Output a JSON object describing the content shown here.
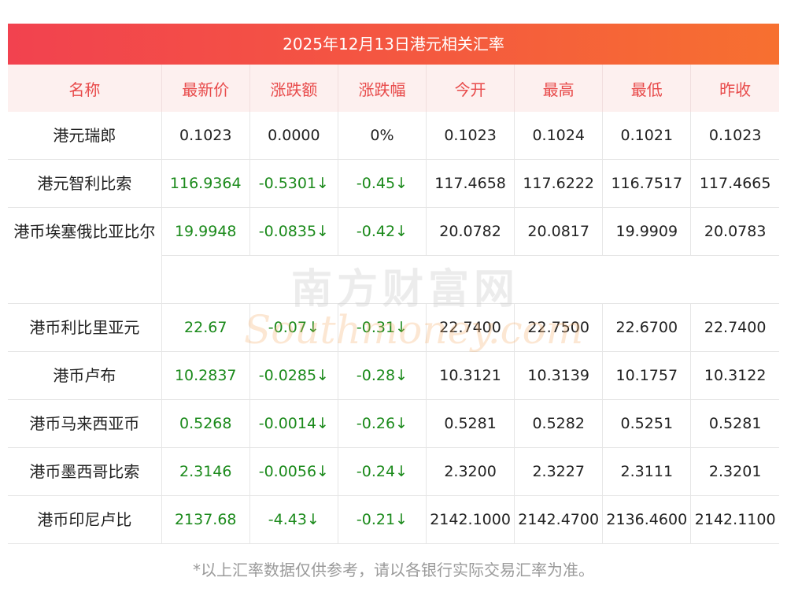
{
  "title": "2025年12月13日港元相关汇率",
  "headers": [
    "名称",
    "最新价",
    "涨跌额",
    "涨跌幅",
    "今开",
    "最高",
    "最低",
    "昨收"
  ],
  "rows": [
    {
      "name": "港元瑞郎",
      "latest": "0.1023",
      "change": "0.0000",
      "pct": "0%",
      "open": "0.1023",
      "high": "0.1024",
      "low": "0.1021",
      "prev": "0.1023"
    },
    {
      "name": "港元智利比索",
      "latest": "116.9364",
      "change": "-0.5301↓",
      "pct": "-0.45↓",
      "open": "117.4658",
      "high": "117.6222",
      "low": "116.7517",
      "prev": "117.4665"
    },
    {
      "name": "港币埃塞俄比亚比尔",
      "latest": "19.9948",
      "change": "-0.0835↓",
      "pct": "-0.42↓",
      "open": "20.0782",
      "high": "20.0817",
      "low": "19.9909",
      "prev": "20.0783"
    },
    {
      "name": "港币利比里亚元",
      "latest": "22.67",
      "change": "-0.07↓",
      "pct": "-0.31↓",
      "open": "22.7400",
      "high": "22.7500",
      "low": "22.6700",
      "prev": "22.7400"
    },
    {
      "name": "港币卢布",
      "latest": "10.2837",
      "change": "-0.0285↓",
      "pct": "-0.28↓",
      "open": "10.3121",
      "high": "10.3139",
      "low": "10.1757",
      "prev": "10.3122"
    },
    {
      "name": "港币马来西亚币",
      "latest": "0.5268",
      "change": "-0.0014↓",
      "pct": "-0.26↓",
      "open": "0.5281",
      "high": "0.5282",
      "low": "0.5251",
      "prev": "0.5281"
    },
    {
      "name": "港币墨西哥比索",
      "latest": "2.3146",
      "change": "-0.0056↓",
      "pct": "-0.24↓",
      "open": "2.3200",
      "high": "2.3227",
      "low": "2.3111",
      "prev": "2.3201"
    },
    {
      "name": "港币印尼卢比",
      "latest": "2137.68",
      "change": "-4.43↓",
      "pct": "-0.21↓",
      "open": "2142.1000",
      "high": "2142.4700",
      "low": "2136.4600",
      "prev": "2142.1100"
    }
  ],
  "watermark": {
    "cn": "南方财富网",
    "en": "Southmoney.com"
  },
  "footnote": "*以上汇率数据仅供参考，请以各银行实际交易汇率为准。",
  "colors": {
    "header_red": "#e84a4a",
    "green": "#1b8a1b",
    "bar_start": "#f2424f",
    "bar_end": "#f77030"
  }
}
